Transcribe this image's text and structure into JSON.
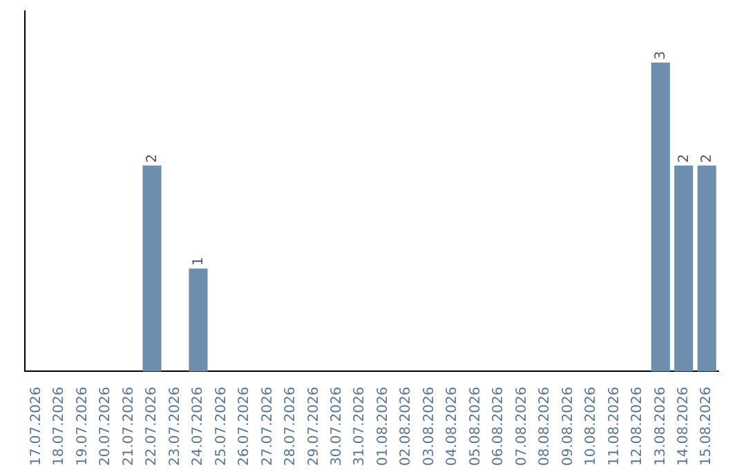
{
  "chart_data": {
    "type": "bar",
    "categories": [
      "17.07.2026",
      "18.07.2026",
      "19.07.2026",
      "20.07.2026",
      "21.07.2026",
      "22.07.2026",
      "23.07.2026",
      "24.07.2026",
      "25.07.2026",
      "26.07.2026",
      "27.07.2026",
      "28.07.2026",
      "29.07.2026",
      "30.07.2026",
      "31.07.2026",
      "01.08.2026",
      "02.08.2026",
      "03.08.2026",
      "04.08.2026",
      "05.08.2026",
      "06.08.2026",
      "07.08.2026",
      "08.08.2026",
      "09.08.2026",
      "10.08.2026",
      "11.08.2026",
      "12.08.2026",
      "13.08.2026",
      "14.08.2026",
      "15.08.2026"
    ],
    "values": [
      0,
      0,
      0,
      0,
      0,
      2,
      0,
      1,
      0,
      0,
      0,
      0,
      0,
      0,
      0,
      0,
      0,
      0,
      0,
      0,
      0,
      0,
      0,
      0,
      0,
      0,
      0,
      3,
      2,
      2
    ],
    "value_labels": [
      null,
      null,
      null,
      null,
      null,
      "2",
      null,
      "1",
      null,
      null,
      null,
      null,
      null,
      null,
      null,
      null,
      null,
      null,
      null,
      null,
      null,
      null,
      null,
      null,
      null,
      null,
      null,
      "3",
      "2",
      "2"
    ],
    "color": "#6d8eae",
    "grid": false,
    "legend": false,
    "tick_labels": "x"
  }
}
